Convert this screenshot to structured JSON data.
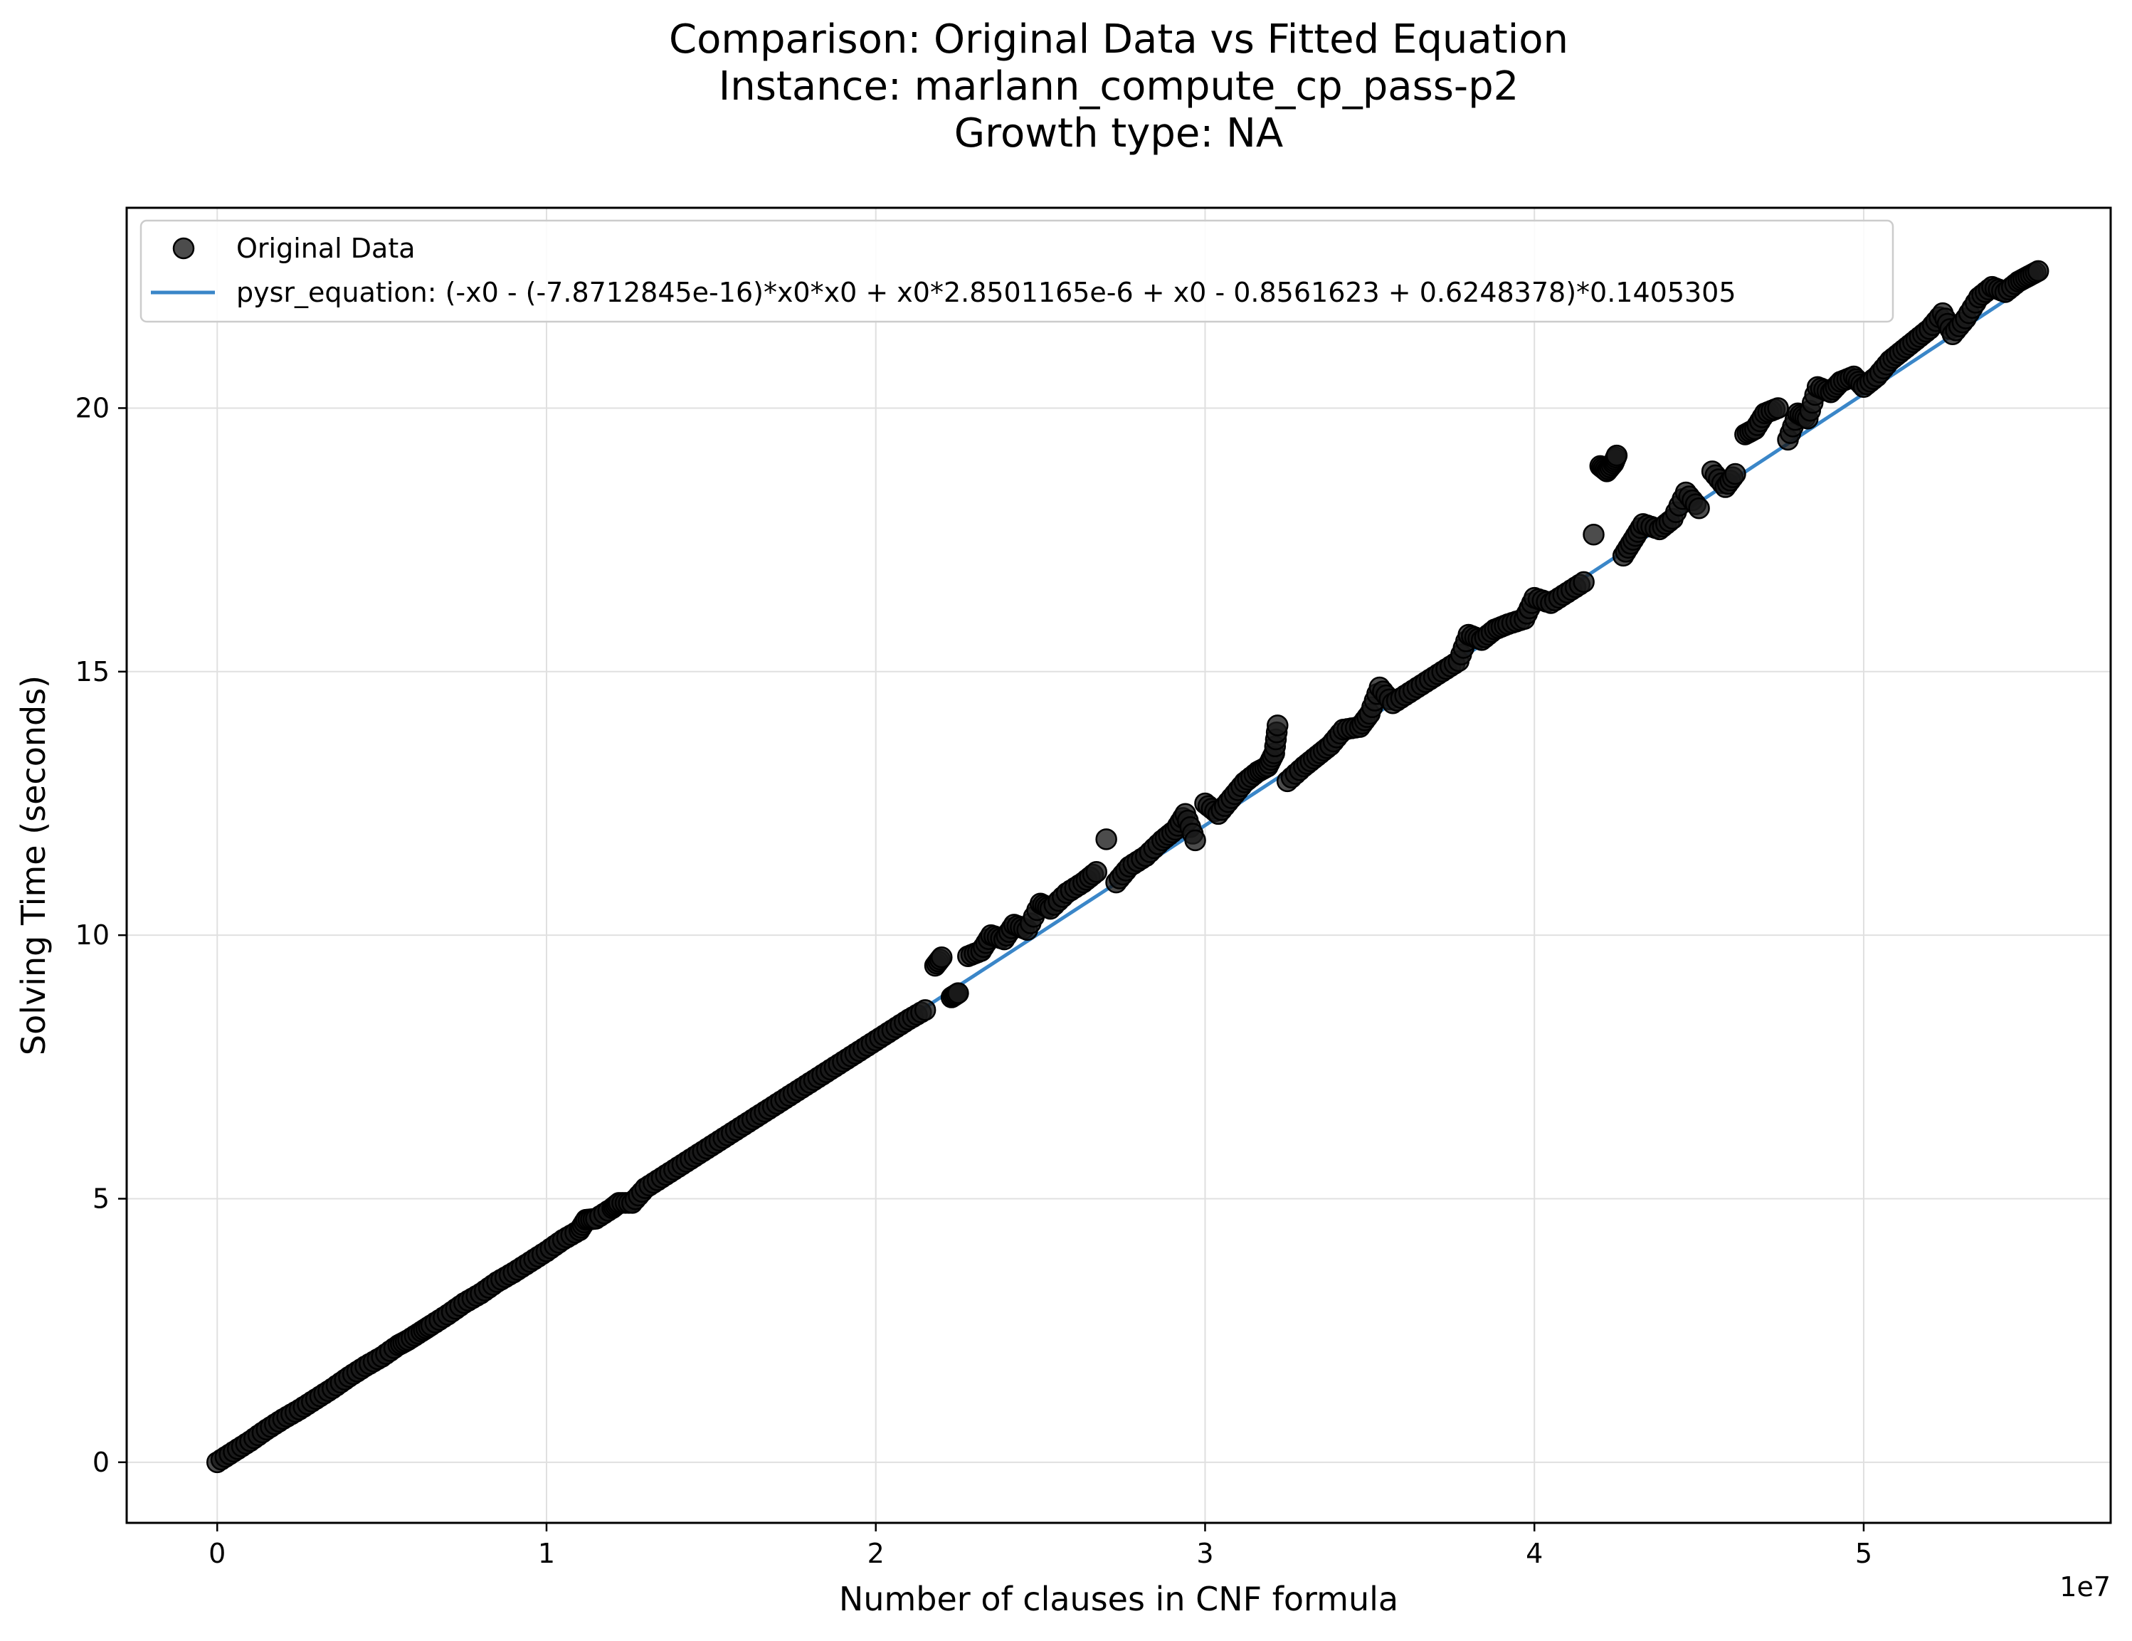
{
  "chart_data": {
    "type": "scatter",
    "title_lines": [
      "Comparison: Original Data vs Fitted Equation",
      "Instance: marlann_compute_cp_pass-p2",
      "Growth type: NA"
    ],
    "xlabel": "Number of clauses in CNF formula",
    "ylabel": "Solving Time (seconds)",
    "x_offset_label": "1e7",
    "xlim": [
      -2750000,
      57500000
    ],
    "ylim": [
      -1.15,
      23.8
    ],
    "x_ticks": [
      0,
      10000000,
      20000000,
      30000000,
      40000000,
      50000000
    ],
    "x_tick_labels": [
      "0",
      "1",
      "2",
      "3",
      "4",
      "5"
    ],
    "y_ticks": [
      0,
      5,
      10,
      15,
      20
    ],
    "y_tick_labels": [
      "0",
      "5",
      "10",
      "15",
      "20"
    ],
    "grid": true,
    "legend_position": "top-left",
    "series": [
      {
        "name": "Original Data",
        "kind": "scatter",
        "color": "#1a1a1a",
        "edge_color": "#000000",
        "points": [
          [
            0,
            0
          ],
          [
            500000,
            0.2
          ],
          [
            1000000,
            0.4
          ],
          [
            1500000,
            0.62
          ],
          [
            2000000,
            0.82
          ],
          [
            2500000,
            1.0
          ],
          [
            3000000,
            1.2
          ],
          [
            3500000,
            1.4
          ],
          [
            4000000,
            1.62
          ],
          [
            4500000,
            1.82
          ],
          [
            5000000,
            2.0
          ],
          [
            5500000,
            2.22
          ],
          [
            5800000,
            2.32
          ],
          [
            6200000,
            2.48
          ],
          [
            6500000,
            2.6
          ],
          [
            7000000,
            2.8
          ],
          [
            7500000,
            3.02
          ],
          [
            8000000,
            3.2
          ],
          [
            8500000,
            3.42
          ],
          [
            9000000,
            3.6
          ],
          [
            9500000,
            3.8
          ],
          [
            10000000,
            4.0
          ],
          [
            10500000,
            4.22
          ],
          [
            11000000,
            4.4
          ],
          [
            11200000,
            4.6
          ],
          [
            11500000,
            4.62
          ],
          [
            12000000,
            4.82
          ],
          [
            12200000,
            4.92
          ],
          [
            12600000,
            4.92
          ],
          [
            13000000,
            5.2
          ],
          [
            13500000,
            5.4
          ],
          [
            14000000,
            5.6
          ],
          [
            14500000,
            5.8
          ],
          [
            15000000,
            6.0
          ],
          [
            15500000,
            6.2
          ],
          [
            16000000,
            6.4
          ],
          [
            16500000,
            6.6
          ],
          [
            17000000,
            6.8
          ],
          [
            17500000,
            7.0
          ],
          [
            18000000,
            7.2
          ],
          [
            18500000,
            7.4
          ],
          [
            19000000,
            7.6
          ],
          [
            19500000,
            7.8
          ],
          [
            20000000,
            8.0
          ],
          [
            20500000,
            8.2
          ],
          [
            21000000,
            8.4
          ],
          [
            21500000,
            8.58
          ],
          [
            21800000,
            9.42
          ],
          [
            22000000,
            9.58
          ],
          [
            22300000,
            8.82
          ],
          [
            22500000,
            8.9
          ],
          [
            22800000,
            9.6
          ],
          [
            23200000,
            9.7
          ],
          [
            23500000,
            10.0
          ],
          [
            23900000,
            9.92
          ],
          [
            24200000,
            10.2
          ],
          [
            24600000,
            10.1
          ],
          [
            25000000,
            10.6
          ],
          [
            25300000,
            10.5
          ],
          [
            25800000,
            10.8
          ],
          [
            26300000,
            11.0
          ],
          [
            26700000,
            11.2
          ],
          [
            27000000,
            11.82
          ],
          [
            27300000,
            11.0
          ],
          [
            27700000,
            11.3
          ],
          [
            28200000,
            11.5
          ],
          [
            28700000,
            11.8
          ],
          [
            29100000,
            12.0
          ],
          [
            29400000,
            12.3
          ],
          [
            29700000,
            11.8
          ],
          [
            30000000,
            12.5
          ],
          [
            30400000,
            12.3
          ],
          [
            30800000,
            12.6
          ],
          [
            31200000,
            12.9
          ],
          [
            31600000,
            13.1
          ],
          [
            31900000,
            13.2
          ],
          [
            32100000,
            13.45
          ],
          [
            32200000,
            13.98
          ],
          [
            32500000,
            12.92
          ],
          [
            33000000,
            13.2
          ],
          [
            33400000,
            13.4
          ],
          [
            33800000,
            13.6
          ],
          [
            34200000,
            13.9
          ],
          [
            34700000,
            13.95
          ],
          [
            35000000,
            14.2
          ],
          [
            35300000,
            14.7
          ],
          [
            35700000,
            14.4
          ],
          [
            36200000,
            14.6
          ],
          [
            36700000,
            14.8
          ],
          [
            37200000,
            15.0
          ],
          [
            37700000,
            15.2
          ],
          [
            38000000,
            15.7
          ],
          [
            38400000,
            15.6
          ],
          [
            38800000,
            15.8
          ],
          [
            39200000,
            15.9
          ],
          [
            39700000,
            16.0
          ],
          [
            40000000,
            16.4
          ],
          [
            40500000,
            16.3
          ],
          [
            41000000,
            16.5
          ],
          [
            41500000,
            16.7
          ],
          [
            41800000,
            17.6
          ],
          [
            42000000,
            18.9
          ],
          [
            42200000,
            18.8
          ],
          [
            42400000,
            18.95
          ],
          [
            42500000,
            19.1
          ],
          [
            42700000,
            17.2
          ],
          [
            43000000,
            17.5
          ],
          [
            43300000,
            17.8
          ],
          [
            43800000,
            17.7
          ],
          [
            44200000,
            17.9
          ],
          [
            44600000,
            18.4
          ],
          [
            45000000,
            18.1
          ],
          [
            45400000,
            18.8
          ],
          [
            45800000,
            18.5
          ],
          [
            46100000,
            18.75
          ],
          [
            46400000,
            19.5
          ],
          [
            46700000,
            19.6
          ],
          [
            47000000,
            19.9
          ],
          [
            47400000,
            20.0
          ],
          [
            47700000,
            19.4
          ],
          [
            48000000,
            19.9
          ],
          [
            48300000,
            19.8
          ],
          [
            48600000,
            20.4
          ],
          [
            49000000,
            20.3
          ],
          [
            49300000,
            20.5
          ],
          [
            49700000,
            20.6
          ],
          [
            50000000,
            20.4
          ],
          [
            50400000,
            20.6
          ],
          [
            50800000,
            20.9
          ],
          [
            51200000,
            21.1
          ],
          [
            51600000,
            21.3
          ],
          [
            52000000,
            21.5
          ],
          [
            52400000,
            21.8
          ],
          [
            52700000,
            21.4
          ],
          [
            53100000,
            21.7
          ],
          [
            53500000,
            22.1
          ],
          [
            53900000,
            22.3
          ],
          [
            54300000,
            22.2
          ],
          [
            54700000,
            22.4
          ],
          [
            55000000,
            22.5
          ],
          [
            55300000,
            22.6
          ]
        ]
      },
      {
        "name": "pysr_equation: (-x0 - (-7.8712845e-16)*x0*x0 + x0*2.8501165e-6 + x0 - 0.8561623 + 0.6248378)*0.1405305",
        "kind": "line",
        "color": "#3a86c8",
        "x_range": [
          0,
          55300000
        ],
        "equation_coefficients": {
          "quadratic": -7.8712845e-16,
          "linear": 2.8501165e-06,
          "const_a": -0.8561623,
          "const_b": 0.6248378,
          "scale": 0.1405305
        }
      }
    ]
  },
  "colors": {
    "background": "#ffffff",
    "axes": "#000000",
    "grid": "#e0e0e0",
    "legend_border": "#cccccc"
  }
}
